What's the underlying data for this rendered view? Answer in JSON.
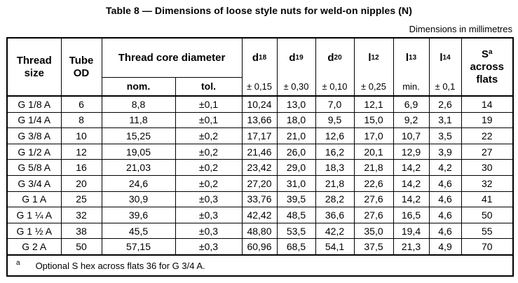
{
  "title": "Table 8 — Dimensions of loose style nuts for weld-on nipples (N)",
  "units_note": "Dimensions in millimetres",
  "table": {
    "header": {
      "thread_size": "Thread size",
      "tube_od": "Tube OD",
      "thread_core": "Thread core diameter",
      "nom": "nom.",
      "tol": "tol.",
      "dims": [
        {
          "base": "d",
          "sub": "18",
          "tol": "± 0,15"
        },
        {
          "base": "d",
          "sub": "19",
          "tol": "± 0,30"
        },
        {
          "base": "d",
          "sub": "20",
          "tol": "± 0,10"
        },
        {
          "base": "l",
          "sub": "12",
          "tol": "± 0,25"
        },
        {
          "base": "l",
          "sub": "13",
          "tol": "min."
        },
        {
          "base": "l",
          "sub": "14",
          "tol": "± 0,1"
        }
      ],
      "s_col": {
        "base": "S",
        "sup": "a",
        "rest": "across flats"
      }
    },
    "rows": [
      [
        "G 1/8 A",
        "6",
        "8,8",
        "±0,1",
        "10,24",
        "13,0",
        "7,0",
        "12,1",
        "6,9",
        "2,6",
        "14"
      ],
      [
        "G 1/4 A",
        "8",
        "11,8",
        "±0,1",
        "13,66",
        "18,0",
        "9,5",
        "15,0",
        "9,2",
        "3,1",
        "19"
      ],
      [
        "G 3/8 A",
        "10",
        "15,25",
        "±0,2",
        "17,17",
        "21,0",
        "12,6",
        "17,0",
        "10,7",
        "3,5",
        "22"
      ],
      [
        "G 1/2 A",
        "12",
        "19,05",
        "±0,2",
        "21,46",
        "26,0",
        "16,2",
        "20,1",
        "12,9",
        "3,9",
        "27"
      ],
      [
        "G 5/8 A",
        "16",
        "21,03",
        "±0,2",
        "23,42",
        "29,0",
        "18,3",
        "21,8",
        "14,2",
        "4,2",
        "30"
      ],
      [
        "G 3/4 A",
        "20",
        "24,6",
        "±0,2",
        "27,20",
        "31,0",
        "21,8",
        "22,6",
        "14,2",
        "4,6",
        "32"
      ],
      [
        "G 1 A",
        "25",
        "30,9",
        "±0,3",
        "33,76",
        "39,5",
        "28,2",
        "27,6",
        "14,2",
        "4,6",
        "41"
      ],
      [
        "G 1 ¼ A",
        "32",
        "39,6",
        "±0,3",
        "42,42",
        "48,5",
        "36,6",
        "27,6",
        "16,5",
        "4,6",
        "50"
      ],
      [
        "G 1 ½ A",
        "38",
        "45,5",
        "±0,3",
        "48,80",
        "53,5",
        "42,2",
        "35,0",
        "19,4",
        "4,6",
        "55"
      ],
      [
        "G 2 A",
        "50",
        "57,15",
        "±0,3",
        "60,96",
        "68,5",
        "54,1",
        "37,5",
        "21,3",
        "4,9",
        "70"
      ]
    ],
    "footnote": {
      "marker": "a",
      "text": "Optional S hex across flats 36 for G 3/4 A."
    }
  }
}
